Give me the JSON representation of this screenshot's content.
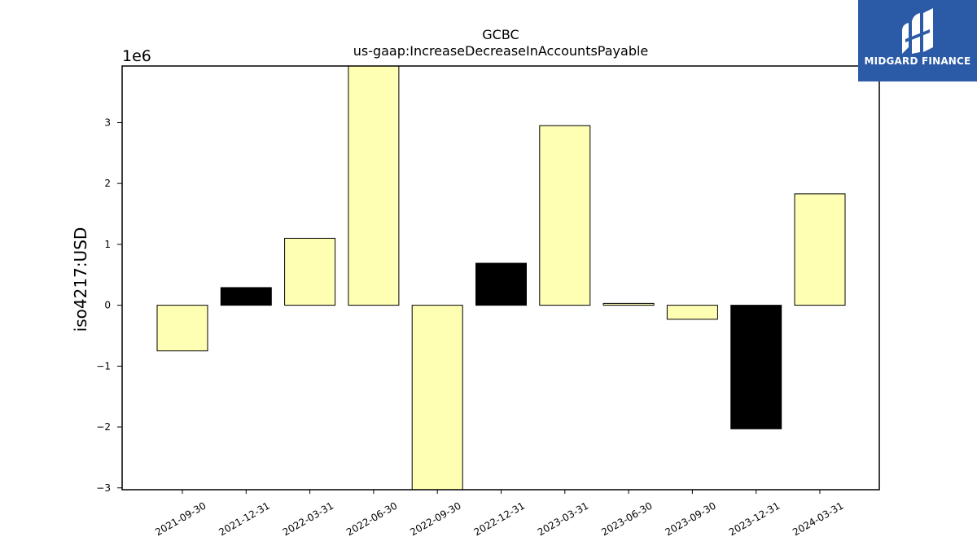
{
  "chart_data": {
    "type": "bar",
    "title": "GCBC",
    "subtitle": "us-gaap:IncreaseDecreaseInAccountsPayable",
    "ylabel": "iso4217:USD",
    "xlabel": "",
    "offset_text": "1e6",
    "categories": [
      "2021-09-30",
      "2021-12-31",
      "2022-03-31",
      "2022-06-30",
      "2022-09-30",
      "2022-12-31",
      "2023-03-31",
      "2023-06-30",
      "2023-09-30",
      "2023-12-31",
      "2024-03-31"
    ],
    "values": [
      -750000,
      290000,
      1100000,
      4200000,
      -3300000,
      690000,
      2950000,
      30000,
      -230000,
      -2030000,
      1830000
    ],
    "bar_colors": [
      "#ffffb3",
      "#000000",
      "#ffffb3",
      "#ffffb3",
      "#ffffb3",
      "#000000",
      "#ffffb3",
      "#ffffb3",
      "#ffffb3",
      "#000000",
      "#ffffb3"
    ],
    "ylim": [
      -3030000,
      3930000
    ],
    "yticks": [
      -3000000,
      -2000000,
      -1000000,
      0,
      1000000,
      2000000,
      3000000
    ],
    "ytick_labels": [
      "−3",
      "−2",
      "−1",
      "0",
      "1",
      "2",
      "3"
    ],
    "grid": false
  },
  "logo": {
    "text": "MIDGARD FINANCE",
    "icon": "midgard-logo-icon",
    "background": "#2b5aa6"
  }
}
